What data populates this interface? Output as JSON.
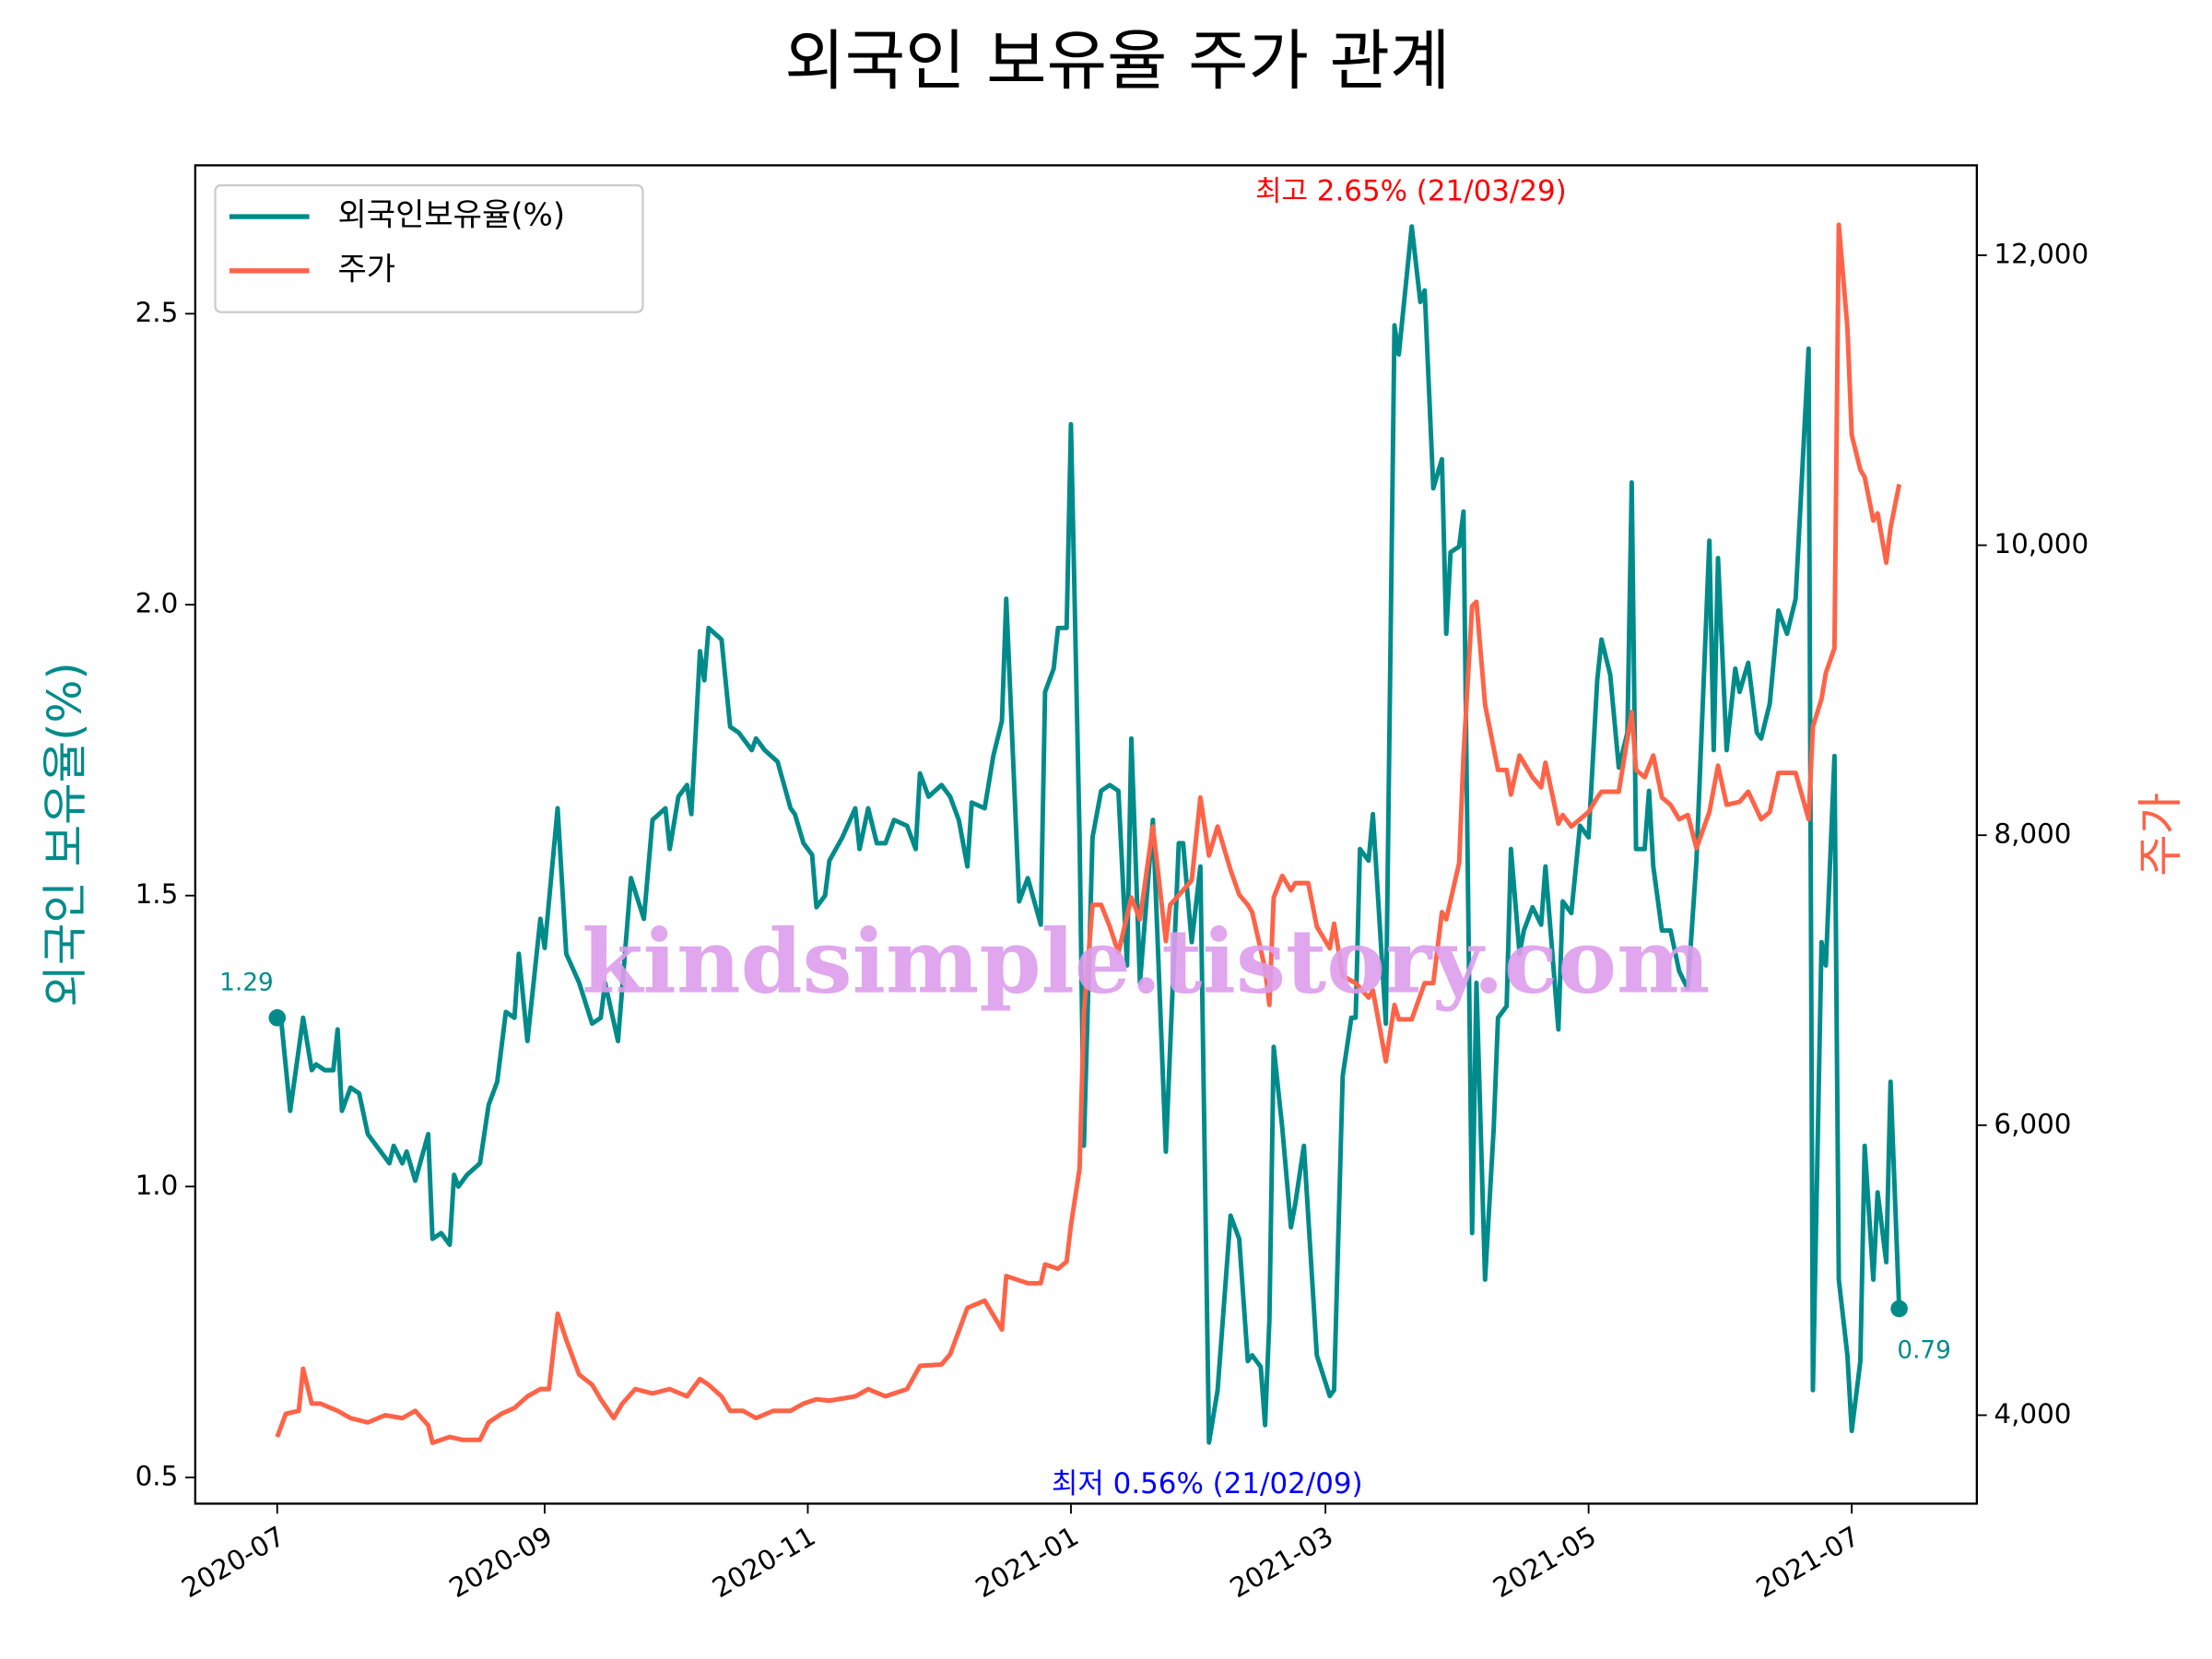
{
  "chart_data": {
    "type": "line",
    "title": "외국인 보유율 주가 관계",
    "ylabel": "외국인 보유율(%)",
    "y2label": "주가",
    "watermark": "kindsimple.tistory.com",
    "legend": "upper left",
    "grid": false,
    "xlim": [
      "2020-06-12",
      "2021-07-30"
    ],
    "xticks": [
      {
        "value": "2020-07-01",
        "label": "2020-07"
      },
      {
        "value": "2020-09-01",
        "label": "2020-09"
      },
      {
        "value": "2020-11-01",
        "label": "2020-11"
      },
      {
        "value": "2021-01-01",
        "label": "2021-01"
      },
      {
        "value": "2021-03-01",
        "label": "2021-03"
      },
      {
        "value": "2021-05-01",
        "label": "2021-05"
      },
      {
        "value": "2021-07-01",
        "label": "2021-07"
      }
    ],
    "ylim": [
      0.455,
      2.755
    ],
    "yticks": [
      0.5,
      {
        "value": 1,
        "label": "1.0"
      },
      1.5,
      {
        "value": 2,
        "label": "2.0"
      },
      2.5
    ],
    "y2lim": [
      3390,
      12620
    ],
    "y2ticks": [
      {
        "value": 4000,
        "label": "4,000"
      },
      {
        "value": 6000,
        "label": "6,000"
      },
      {
        "value": 8000,
        "label": "8,000"
      },
      {
        "value": 10000,
        "label": "10,000"
      },
      {
        "value": 12000,
        "label": "12,000"
      }
    ],
    "annotations": [
      {
        "text": "1.29",
        "color": "#008b8b"
      },
      {
        "text": "0.79",
        "color": "#008b8b"
      },
      {
        "text": "최고 2.65% (21/03/29)",
        "color": "#ff0000"
      },
      {
        "text": "최저 0.56% (21/02/09)",
        "color": "#0000ff"
      }
    ],
    "series": [
      {
        "name": "외국인보유율(%)",
        "color": "#008b8b",
        "axis": "y",
        "x": [
          "2020-07-01",
          "2020-07-02",
          "2020-07-04",
          "2020-07-07",
          "2020-07-09",
          "2020-07-10",
          "2020-07-12",
          "2020-07-14",
          "2020-07-15",
          "2020-07-16",
          "2020-07-18",
          "2020-07-20",
          "2020-07-22",
          "2020-07-25",
          "2020-07-27",
          "2020-07-28",
          "2020-07-30",
          "2020-07-31",
          "2020-08-02",
          "2020-08-05",
          "2020-08-06",
          "2020-08-08",
          "2020-08-10",
          "2020-08-11",
          "2020-08-12",
          "2020-08-14",
          "2020-08-17",
          "2020-08-19",
          "2020-08-21",
          "2020-08-23",
          "2020-08-25",
          "2020-08-26",
          "2020-08-28",
          "2020-08-31",
          "2020-09-01",
          "2020-09-04",
          "2020-09-06",
          "2020-09-09",
          "2020-09-12",
          "2020-09-14",
          "2020-09-15",
          "2020-09-18",
          "2020-09-21",
          "2020-09-24",
          "2020-09-26",
          "2020-09-29",
          "2020-09-30",
          "2020-10-02",
          "2020-10-04",
          "2020-10-05",
          "2020-10-07",
          "2020-10-08",
          "2020-10-09",
          "2020-10-12",
          "2020-10-14",
          "2020-10-16",
          "2020-10-19",
          "2020-10-20",
          "2020-10-22",
          "2020-10-25",
          "2020-10-28",
          "2020-10-29",
          "2020-10-31",
          "2020-11-02",
          "2020-11-03",
          "2020-11-05",
          "2020-11-06",
          "2020-11-09",
          "2020-11-12",
          "2020-11-13",
          "2020-11-15",
          "2020-11-17",
          "2020-11-19",
          "2020-11-21",
          "2020-11-24",
          "2020-11-26",
          "2020-11-27",
          "2020-11-29",
          "2020-12-02",
          "2020-12-04",
          "2020-12-06",
          "2020-12-08",
          "2020-12-09",
          "2020-12-12",
          "2020-12-14",
          "2020-12-16",
          "2020-12-17",
          "2020-12-20",
          "2020-12-22",
          "2020-12-25",
          "2020-12-26",
          "2020-12-28",
          "2020-12-29",
          "2020-12-31",
          "2021-01-01",
          "2021-01-03",
          "2021-01-04",
          "2021-01-06",
          "2021-01-08",
          "2021-01-10",
          "2021-01-12",
          "2021-01-14",
          "2021-01-15",
          "2021-01-17",
          "2021-01-20",
          "2021-01-23",
          "2021-01-24",
          "2021-01-26",
          "2021-01-27",
          "2021-01-29",
          "2021-01-31",
          "2021-02-02",
          "2021-02-04",
          "2021-02-07",
          "2021-02-09",
          "2021-02-11",
          "2021-02-12",
          "2021-02-14",
          "2021-02-15",
          "2021-02-16",
          "2021-02-17",
          "2021-02-19",
          "2021-02-21",
          "2021-02-22",
          "2021-02-24",
          "2021-02-25",
          "2021-02-27",
          "2021-03-02",
          "2021-03-03",
          "2021-03-05",
          "2021-03-07",
          "2021-03-08",
          "2021-03-09",
          "2021-03-11",
          "2021-03-12",
          "2021-03-15",
          "2021-03-17",
          "2021-03-18",
          "2021-03-21",
          "2021-03-23",
          "2021-03-24",
          "2021-03-26",
          "2021-03-28",
          "2021-03-29",
          "2021-03-30",
          "2021-04-01",
          "2021-04-02",
          "2021-04-04",
          "2021-04-05",
          "2021-04-07",
          "2021-04-09",
          "2021-04-10",
          "2021-04-12",
          "2021-04-13",
          "2021-04-15",
          "2021-04-16",
          "2021-04-18",
          "2021-04-20",
          "2021-04-21",
          "2021-04-24",
          "2021-04-25",
          "2021-04-27",
          "2021-04-29",
          "2021-05-01",
          "2021-05-03",
          "2021-05-04",
          "2021-05-06",
          "2021-05-08",
          "2021-05-10",
          "2021-05-11",
          "2021-05-12",
          "2021-05-14",
          "2021-05-15",
          "2021-05-16",
          "2021-05-18",
          "2021-05-20",
          "2021-05-22",
          "2021-05-24",
          "2021-05-26",
          "2021-05-29",
          "2021-05-30",
          "2021-05-31",
          "2021-06-02",
          "2021-06-04",
          "2021-06-05",
          "2021-06-07",
          "2021-06-09",
          "2021-06-10",
          "2021-06-12",
          "2021-06-14",
          "2021-06-16",
          "2021-06-18",
          "2021-06-21",
          "2021-06-22",
          "2021-06-24",
          "2021-06-25",
          "2021-06-27",
          "2021-06-28",
          "2021-06-30",
          "2021-07-01",
          "2021-07-03",
          "2021-07-04",
          "2021-07-06",
          "2021-07-07",
          "2021-07-09",
          "2021-07-10",
          "2021-07-12"
        ],
        "values": [
          1.29,
          1.28,
          1.13,
          1.29,
          1.2,
          1.21,
          1.2,
          1.2,
          1.27,
          1.13,
          1.17,
          1.16,
          1.09,
          1.06,
          1.04,
          1.07,
          1.04,
          1.06,
          1.01,
          1.09,
          0.91,
          0.92,
          0.9,
          1.02,
          1.0,
          1.02,
          1.04,
          1.14,
          1.18,
          1.3,
          1.29,
          1.4,
          1.25,
          1.46,
          1.41,
          1.65,
          1.4,
          1.35,
          1.28,
          1.29,
          1.35,
          1.25,
          1.53,
          1.46,
          1.63,
          1.65,
          1.58,
          1.67,
          1.69,
          1.64,
          1.92,
          1.87,
          1.96,
          1.94,
          1.79,
          1.78,
          1.75,
          1.77,
          1.75,
          1.73,
          1.65,
          1.64,
          1.59,
          1.57,
          1.48,
          1.5,
          1.56,
          1.6,
          1.65,
          1.58,
          1.65,
          1.59,
          1.59,
          1.63,
          1.62,
          1.58,
          1.71,
          1.67,
          1.69,
          1.67,
          1.63,
          1.55,
          1.66,
          1.65,
          1.74,
          1.8,
          2.01,
          1.49,
          1.53,
          1.45,
          1.85,
          1.89,
          1.96,
          1.96,
          2.31,
          1.6,
          1.07,
          1.6,
          1.68,
          1.69,
          1.68,
          1.38,
          1.77,
          1.35,
          1.63,
          1.06,
          1.24,
          1.59,
          1.59,
          1.42,
          1.55,
          0.56,
          0.65,
          0.95,
          0.91,
          0.7,
          0.71,
          0.69,
          0.59,
          0.77,
          1.24,
          1.1,
          0.93,
          0.97,
          1.07,
          0.95,
          0.71,
          0.64,
          0.65,
          1.19,
          1.29,
          1.29,
          1.58,
          1.56,
          1.64,
          1.28,
          2.48,
          2.43,
          2.65,
          2.52,
          2.54,
          2.2,
          2.25,
          1.95,
          2.09,
          2.1,
          2.16,
          0.92,
          1.35,
          0.84,
          1.1,
          1.29,
          1.31,
          1.58,
          1.4,
          1.44,
          1.48,
          1.45,
          1.55,
          1.27,
          1.49,
          1.47,
          1.62,
          1.6,
          1.87,
          1.94,
          1.88,
          1.72,
          1.78,
          2.21,
          1.58,
          1.58,
          1.68,
          1.55,
          1.44,
          1.44,
          1.37,
          1.34,
          1.56,
          2.11,
          1.75,
          2.08,
          1.75,
          1.89,
          1.85,
          1.9,
          1.78,
          1.77,
          1.83,
          1.99,
          1.95,
          2.01,
          2.44,
          0.65,
          1.42,
          1.38,
          1.74,
          0.84,
          0.71,
          0.58,
          0.7,
          1.07,
          0.84,
          0.99,
          0.87,
          1.18,
          0.79
        ]
      },
      {
        "name": "주가",
        "color": "#ff6347",
        "axis": "y2",
        "x": [
          "2020-07-01",
          "2020-07-03",
          "2020-07-06",
          "2020-07-07",
          "2020-07-09",
          "2020-07-11",
          "2020-07-15",
          "2020-07-18",
          "2020-07-22",
          "2020-07-26",
          "2020-07-30",
          "2020-08-02",
          "2020-08-05",
          "2020-08-06",
          "2020-08-10",
          "2020-08-13",
          "2020-08-17",
          "2020-08-19",
          "2020-08-22",
          "2020-08-25",
          "2020-08-28",
          "2020-08-31",
          "2020-09-02",
          "2020-09-04",
          "2020-09-06",
          "2020-09-09",
          "2020-09-12",
          "2020-09-14",
          "2020-09-17",
          "2020-09-19",
          "2020-09-22",
          "2020-09-26",
          "2020-09-30",
          "2020-10-04",
          "2020-10-07",
          "2020-10-09",
          "2020-10-12",
          "2020-10-14",
          "2020-10-17",
          "2020-10-20",
          "2020-10-24",
          "2020-10-28",
          "2020-10-31",
          "2020-11-03",
          "2020-11-06",
          "2020-11-12",
          "2020-11-15",
          "2020-11-19",
          "2020-11-24",
          "2020-11-27",
          "2020-12-02",
          "2020-12-04",
          "2020-12-08",
          "2020-12-12",
          "2020-12-16",
          "2020-12-17",
          "2020-12-20",
          "2020-12-22",
          "2020-12-25",
          "2020-12-26",
          "2020-12-29",
          "2020-12-31",
          "2021-01-01",
          "2021-01-03",
          "2021-01-04",
          "2021-01-06",
          "2021-01-08",
          "2021-01-10",
          "2021-01-12",
          "2021-01-15",
          "2021-01-17",
          "2021-01-20",
          "2021-01-23",
          "2021-01-24",
          "2021-01-27",
          "2021-01-29",
          "2021-01-31",
          "2021-02-02",
          "2021-02-04",
          "2021-02-07",
          "2021-02-09",
          "2021-02-11",
          "2021-02-12",
          "2021-02-15",
          "2021-02-16",
          "2021-02-17",
          "2021-02-19",
          "2021-02-21",
          "2021-02-22",
          "2021-02-25",
          "2021-02-27",
          "2021-03-02",
          "2021-03-03",
          "2021-03-05",
          "2021-03-08",
          "2021-03-11",
          "2021-03-12",
          "2021-03-15",
          "2021-03-17",
          "2021-03-18",
          "2021-03-21",
          "2021-03-24",
          "2021-03-26",
          "2021-03-28",
          "2021-03-29",
          "2021-04-01",
          "2021-04-02",
          "2021-04-04",
          "2021-04-05",
          "2021-04-07",
          "2021-04-10",
          "2021-04-12",
          "2021-04-13",
          "2021-04-15",
          "2021-04-18",
          "2021-04-20",
          "2021-04-21",
          "2021-04-24",
          "2021-04-25",
          "2021-04-27",
          "2021-04-29",
          "2021-05-01",
          "2021-05-03",
          "2021-05-04",
          "2021-05-08",
          "2021-05-11",
          "2021-05-12",
          "2021-05-14",
          "2021-05-16",
          "2021-05-18",
          "2021-05-20",
          "2021-05-22",
          "2021-05-24",
          "2021-05-26",
          "2021-05-29",
          "2021-05-31",
          "2021-06-02",
          "2021-06-05",
          "2021-06-07",
          "2021-06-10",
          "2021-06-12",
          "2021-06-14",
          "2021-06-18",
          "2021-06-21",
          "2021-06-22",
          "2021-06-24",
          "2021-06-25",
          "2021-06-27",
          "2021-06-28",
          "2021-06-30",
          "2021-07-01",
          "2021-07-03",
          "2021-07-04",
          "2021-07-06",
          "2021-07-07",
          "2021-07-09",
          "2021-07-10",
          "2021-07-12"
        ],
        "values": [
          3850,
          4010,
          4030,
          4320,
          4080,
          4080,
          4030,
          3980,
          3950,
          4000,
          3980,
          4030,
          3930,
          3810,
          3850,
          3830,
          3830,
          3950,
          4010,
          4050,
          4130,
          4180,
          4180,
          4700,
          4520,
          4280,
          4210,
          4110,
          3980,
          4080,
          4180,
          4150,
          4180,
          4130,
          4250,
          4210,
          4130,
          4030,
          4030,
          3980,
          4030,
          4030,
          4080,
          4110,
          4100,
          4130,
          4180,
          4130,
          4180,
          4340,
          4350,
          4420,
          4740,
          4790,
          4590,
          4960,
          4930,
          4910,
          4910,
          5040,
          5010,
          5060,
          5310,
          5700,
          6780,
          7520,
          7520,
          7370,
          7190,
          7570,
          7420,
          8060,
          7270,
          7520,
          7620,
          7690,
          8260,
          7860,
          8060,
          7760,
          7590,
          7520,
          7470,
          7080,
          6830,
          7570,
          7720,
          7620,
          7670,
          7670,
          7370,
          7220,
          7390,
          7030,
          6980,
          6880,
          6930,
          6440,
          6830,
          6730,
          6730,
          6980,
          6980,
          7470,
          7420,
          7810,
          8550,
          9580,
          9610,
          8900,
          8450,
          8450,
          8280,
          8550,
          8400,
          8330,
          8500,
          8080,
          8140,
          8060,
          8110,
          8160,
          8260,
          8300,
          8300,
          8850,
          8450,
          8400,
          8550,
          8260,
          8210,
          8110,
          8140,
          7910,
          8160,
          8480,
          8210,
          8230,
          8300,
          8110,
          8160,
          8430,
          8430,
          8110,
          8750,
          8940,
          9120,
          9290,
          12210,
          11500,
          10760,
          10520,
          10470,
          10170,
          10220,
          9880,
          10120,
          10420
        ]
      }
    ]
  }
}
